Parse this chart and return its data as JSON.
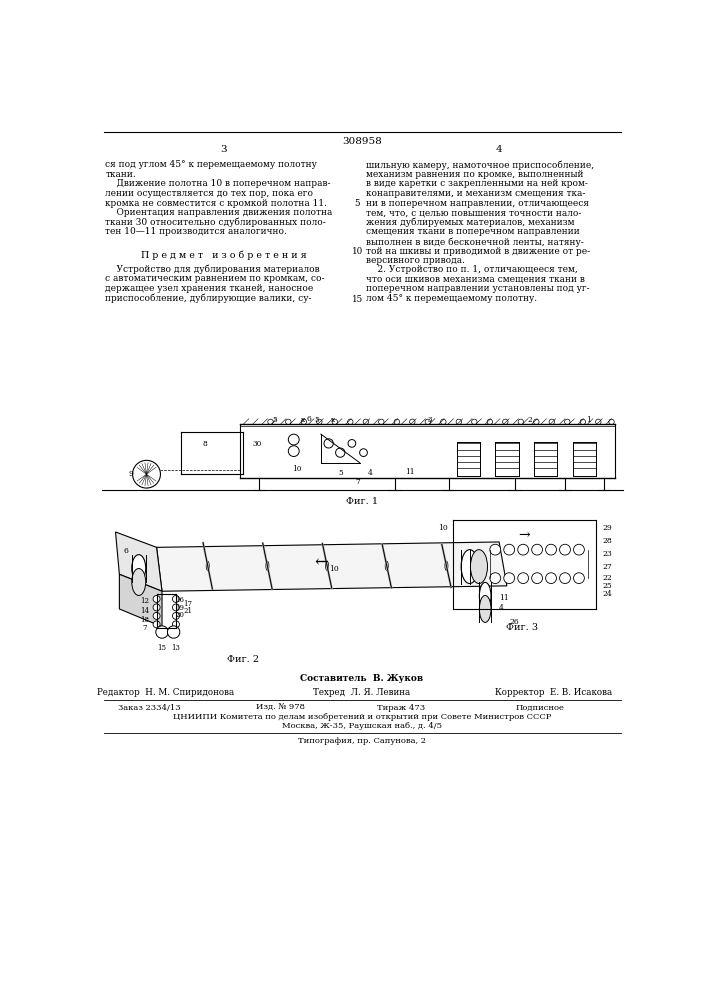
{
  "patent_number": "308958",
  "page_left": "3",
  "page_right": "4",
  "left_body": [
    "ся под углом 45° к перемещаемому полотну",
    "ткани.",
    "    Движение полотна 10 в поперечном направ-",
    "лении осуществляется до тех пор, пока его",
    "кромка не совместится с кромкой полотна 11.",
    "    Ориентация направления движения полотна",
    "ткани 30 относительно сдублированных поло-",
    "тен 10—11 производится аналогично."
  ],
  "right_body": [
    "шильную камеру, намоточное приспособление,",
    "механизм равнения по кромке, выполненный",
    "в виде каретки с закрепленными на ней кром-",
    "конаправителями, и механизм смещения тка-",
    "ни в поперечном направлении, отличающееся",
    "тем, что, с целью повышения точности нало-",
    "жения дублируемых материалов, механизм",
    "смещения ткани в поперечном направлении",
    "выполнен в виде бесконечной ленты, натяну-",
    "той на шкивы и приводимой в движение от ре-",
    "версивного привода."
  ],
  "line_num_5": "5",
  "line_num_10": "10",
  "line_num_15": "15",
  "claims_title": "П р е д м е т   и з о б р е т е н и я",
  "claims_left": [
    "    Устройство для дублирования материалов",
    "с автоматическим равнением по кромкам, со-",
    "держащее узел хранения тканей, наносное",
    "приспособление, дублирующие валики, су-"
  ],
  "claims_right": [
    "    2. Устройство по п. 1, отличающееся тем,",
    "что оси шкивов механизма смещения ткани в",
    "поперечном направлении установлены под уг-",
    "лом 45° к перемещаемому полотну."
  ],
  "fig1_label": "Фиг. 1",
  "fig2_label": "Фиг. 2",
  "fig3_label": "Фиг. 3",
  "footer_author": "Составитель  В. Жуков",
  "footer_editor": "Редактор  Н. М. Спиридонова",
  "footer_tech": "Техред  Л. Я. Левина",
  "footer_corrector": "Корректор  Е. В. Исакова",
  "footer_order": "Заказ 2334/13",
  "footer_pub": "Изд. № 978",
  "footer_edition": "Тираж 473",
  "footer_type": "Подписное",
  "footer_org": "ЦНИИПИ Комитета по делам изобретений и открытий при Совете Министров СССР",
  "footer_address": "Москва, Ж-35, Раушская наб., д. 4/5",
  "footer_print": "Типография, пр. Сапунова, 2"
}
